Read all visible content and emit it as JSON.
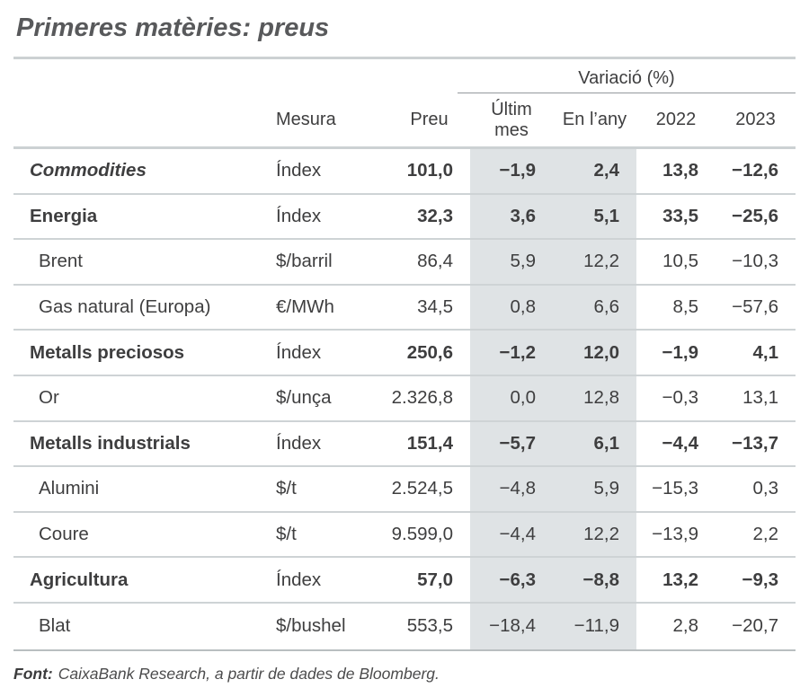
{
  "title": "Primeres matèries: preus",
  "colors": {
    "highlight": "#dfe3e5",
    "rule": "#ccd1d3",
    "row_line": "#ced3d5",
    "bottom_line": "#b9bec0",
    "title_color": "#58595b",
    "text_color": "#3e3e3f"
  },
  "chart_data": {
    "type": "table",
    "title": "Primeres matèries: preus",
    "group_header": "Variació (%)",
    "group_header_spans": [
      "Últim mes",
      "En l'any",
      "2022",
      "2023"
    ],
    "highlighted_columns": [
      "Últim mes",
      "En l'any"
    ],
    "columns": [
      "",
      "Mesura",
      "Preu",
      "Últim mes",
      "En l'any",
      "2022",
      "2023"
    ],
    "header": {
      "group": "Variació (%)",
      "mesura": "Mesura",
      "preu": "Preu",
      "ultim_mes": "Últim mes",
      "en_lany": "En l’any",
      "y2022": "2022",
      "y2023": "2023"
    },
    "rows": [
      {
        "label": "Commodities",
        "style": "commodities",
        "mesura": "Índex",
        "preu": "101,0",
        "ultim_mes": "−1,9",
        "en_lany": "2,4",
        "y2022": "13,8",
        "y2023": "−12,6"
      },
      {
        "label": "Energia",
        "style": "section",
        "mesura": "Índex",
        "preu": "32,3",
        "ultim_mes": "3,6",
        "en_lany": "5,1",
        "y2022": "33,5",
        "y2023": "−25,6"
      },
      {
        "label": "Brent",
        "style": "item",
        "mesura": "$/barril",
        "preu": "86,4",
        "ultim_mes": "5,9",
        "en_lany": "12,2",
        "y2022": "10,5",
        "y2023": "−10,3"
      },
      {
        "label": "Gas natural (Europa)",
        "style": "item",
        "mesura": "€/MWh",
        "preu": "34,5",
        "ultim_mes": "0,8",
        "en_lany": "6,6",
        "y2022": "8,5",
        "y2023": "−57,6"
      },
      {
        "label": "Metalls preciosos",
        "style": "section",
        "mesura": "Índex",
        "preu": "250,6",
        "ultim_mes": "−1,2",
        "en_lany": "12,0",
        "y2022": "−1,9",
        "y2023": "4,1"
      },
      {
        "label": "Or",
        "style": "item",
        "mesura": "$/unça",
        "preu": "2.326,8",
        "ultim_mes": "0,0",
        "en_lany": "12,8",
        "y2022": "−0,3",
        "y2023": "13,1"
      },
      {
        "label": "Metalls industrials",
        "style": "section",
        "mesura": "Índex",
        "preu": "151,4",
        "ultim_mes": "−5,7",
        "en_lany": "6,1",
        "y2022": "−4,4",
        "y2023": "−13,7"
      },
      {
        "label": "Alumini",
        "style": "item",
        "mesura": "$/t",
        "preu": "2.524,5",
        "ultim_mes": "−4,8",
        "en_lany": "5,9",
        "y2022": "−15,3",
        "y2023": "0,3"
      },
      {
        "label": "Coure",
        "style": "item",
        "mesura": "$/t",
        "preu": "9.599,0",
        "ultim_mes": "−4,4",
        "en_lany": "12,2",
        "y2022": "−13,9",
        "y2023": "2,2"
      },
      {
        "label": "Agricultura",
        "style": "section",
        "mesura": "Índex",
        "preu": "57,0",
        "ultim_mes": "−6,3",
        "en_lany": "−8,8",
        "y2022": "13,2",
        "y2023": "−9,3"
      },
      {
        "label": "Blat",
        "style": "item",
        "mesura": "$/bushel",
        "preu": "553,5",
        "ultim_mes": "−18,4",
        "en_lany": "−11,9",
        "y2022": "2,8",
        "y2023": "−20,7"
      }
    ],
    "source": {
      "label": "Font:",
      "text": "CaixaBank Research, a partir de dades de Bloomberg."
    }
  }
}
